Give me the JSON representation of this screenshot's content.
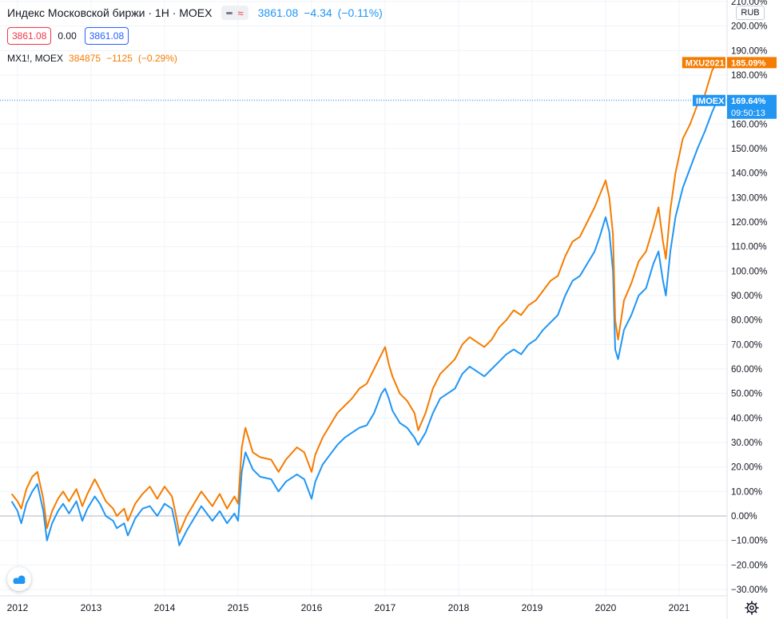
{
  "header": {
    "title": "Индекс Московской биржи · 1Н · MOEX",
    "last": "3861.08",
    "change": "−4.34",
    "change_pct": "(−0.11%)",
    "bid": "3861.08",
    "spread": "0.00",
    "ask": "3861.08"
  },
  "compare": {
    "symbol": "MX1!, MOEX",
    "last": "384875",
    "change": "−1125",
    "change_pct": "(−0.29%)"
  },
  "currency_button": "RUB",
  "colors": {
    "imoex": "#2196f3",
    "mxu": "#f57c00",
    "axis_text": "#131722",
    "zero_line": "#b2b5be"
  },
  "chart_data": {
    "type": "line",
    "title": "Индекс Московской биржи · 1Н · MOEX",
    "x_ticks": [
      "2012",
      "2013",
      "2014",
      "2015",
      "2016",
      "2017",
      "2018",
      "2019",
      "2020",
      "2021"
    ],
    "x_range": [
      2011.92,
      2021.75
    ],
    "y_range": [
      -30,
      210
    ],
    "y_unit": "%",
    "y_ticks": [
      "210.00%",
      "200.00%",
      "190.00%",
      "180.00%",
      "170.00%",
      "160.00%",
      "150.00%",
      "140.00%",
      "130.00%",
      "120.00%",
      "110.00%",
      "100.00%",
      "90.00%",
      "80.00%",
      "70.00%",
      "60.00%",
      "50.00%",
      "40.00%",
      "30.00%",
      "20.00%",
      "10.00%",
      "0.00%",
      "−10.00%",
      "−20.00%",
      "−30.00%"
    ],
    "series": [
      {
        "name": "IMOEX",
        "color": "#2196f3",
        "points": [
          [
            2011.92,
            6
          ],
          [
            2012.0,
            2
          ],
          [
            2012.05,
            -3
          ],
          [
            2012.12,
            5
          ],
          [
            2012.2,
            10
          ],
          [
            2012.27,
            13
          ],
          [
            2012.35,
            2
          ],
          [
            2012.4,
            -10
          ],
          [
            2012.47,
            -3
          ],
          [
            2012.55,
            2
          ],
          [
            2012.62,
            5
          ],
          [
            2012.7,
            1
          ],
          [
            2012.8,
            6
          ],
          [
            2012.88,
            -2
          ],
          [
            2012.95,
            3
          ],
          [
            2013.05,
            8
          ],
          [
            2013.12,
            5
          ],
          [
            2013.2,
            0
          ],
          [
            2013.3,
            -2
          ],
          [
            2013.35,
            -5
          ],
          [
            2013.45,
            -3
          ],
          [
            2013.5,
            -8
          ],
          [
            2013.6,
            -1
          ],
          [
            2013.7,
            3
          ],
          [
            2013.8,
            4
          ],
          [
            2013.9,
            0
          ],
          [
            2014.0,
            5
          ],
          [
            2014.1,
            3
          ],
          [
            2014.15,
            -4
          ],
          [
            2014.2,
            -12
          ],
          [
            2014.3,
            -6
          ],
          [
            2014.4,
            -1
          ],
          [
            2014.5,
            4
          ],
          [
            2014.55,
            2
          ],
          [
            2014.65,
            -2
          ],
          [
            2014.75,
            2
          ],
          [
            2014.85,
            -3
          ],
          [
            2014.95,
            1
          ],
          [
            2015.0,
            -2
          ],
          [
            2015.05,
            18
          ],
          [
            2015.1,
            26
          ],
          [
            2015.2,
            19
          ],
          [
            2015.3,
            16
          ],
          [
            2015.45,
            15
          ],
          [
            2015.55,
            10
          ],
          [
            2015.65,
            14
          ],
          [
            2015.8,
            17
          ],
          [
            2015.9,
            15
          ],
          [
            2016.0,
            7
          ],
          [
            2016.05,
            14
          ],
          [
            2016.15,
            21
          ],
          [
            2016.25,
            25
          ],
          [
            2016.35,
            29
          ],
          [
            2016.45,
            32
          ],
          [
            2016.55,
            34
          ],
          [
            2016.65,
            36
          ],
          [
            2016.75,
            37
          ],
          [
            2016.85,
            42
          ],
          [
            2016.95,
            50
          ],
          [
            2017.0,
            52
          ],
          [
            2017.05,
            48
          ],
          [
            2017.1,
            43
          ],
          [
            2017.2,
            38
          ],
          [
            2017.3,
            36
          ],
          [
            2017.4,
            32
          ],
          [
            2017.45,
            29
          ],
          [
            2017.55,
            34
          ],
          [
            2017.65,
            42
          ],
          [
            2017.75,
            48
          ],
          [
            2017.85,
            50
          ],
          [
            2017.95,
            52
          ],
          [
            2018.05,
            58
          ],
          [
            2018.15,
            61
          ],
          [
            2018.25,
            59
          ],
          [
            2018.35,
            57
          ],
          [
            2018.45,
            60
          ],
          [
            2018.55,
            63
          ],
          [
            2018.65,
            66
          ],
          [
            2018.75,
            68
          ],
          [
            2018.85,
            66
          ],
          [
            2018.95,
            70
          ],
          [
            2019.05,
            72
          ],
          [
            2019.15,
            76
          ],
          [
            2019.25,
            79
          ],
          [
            2019.35,
            82
          ],
          [
            2019.45,
            90
          ],
          [
            2019.55,
            96
          ],
          [
            2019.65,
            98
          ],
          [
            2019.75,
            103
          ],
          [
            2019.85,
            108
          ],
          [
            2019.92,
            114
          ],
          [
            2020.0,
            122
          ],
          [
            2020.05,
            116
          ],
          [
            2020.1,
            100
          ],
          [
            2020.13,
            68
          ],
          [
            2020.17,
            64
          ],
          [
            2020.25,
            76
          ],
          [
            2020.35,
            82
          ],
          [
            2020.45,
            90
          ],
          [
            2020.55,
            93
          ],
          [
            2020.65,
            103
          ],
          [
            2020.72,
            108
          ],
          [
            2020.78,
            96
          ],
          [
            2020.82,
            90
          ],
          [
            2020.88,
            108
          ],
          [
            2020.95,
            122
          ],
          [
            2021.05,
            134
          ],
          [
            2021.15,
            142
          ],
          [
            2021.25,
            150
          ],
          [
            2021.35,
            157
          ],
          [
            2021.45,
            165
          ],
          [
            2021.52,
            169.64
          ]
        ]
      },
      {
        "name": "MXU2021",
        "color": "#f57c00",
        "points": [
          [
            2011.92,
            9
          ],
          [
            2012.0,
            6
          ],
          [
            2012.05,
            3
          ],
          [
            2012.12,
            11
          ],
          [
            2012.2,
            16
          ],
          [
            2012.27,
            18
          ],
          [
            2012.35,
            7
          ],
          [
            2012.4,
            -5
          ],
          [
            2012.47,
            2
          ],
          [
            2012.55,
            7
          ],
          [
            2012.62,
            10
          ],
          [
            2012.7,
            6
          ],
          [
            2012.8,
            11
          ],
          [
            2012.88,
            4
          ],
          [
            2012.95,
            9
          ],
          [
            2013.05,
            15
          ],
          [
            2013.12,
            11
          ],
          [
            2013.2,
            6
          ],
          [
            2013.3,
            3
          ],
          [
            2013.35,
            0
          ],
          [
            2013.45,
            3
          ],
          [
            2013.5,
            -2
          ],
          [
            2013.6,
            5
          ],
          [
            2013.7,
            9
          ],
          [
            2013.8,
            12
          ],
          [
            2013.9,
            7
          ],
          [
            2014.0,
            12
          ],
          [
            2014.1,
            8
          ],
          [
            2014.15,
            1
          ],
          [
            2014.2,
            -7
          ],
          [
            2014.3,
            0
          ],
          [
            2014.4,
            5
          ],
          [
            2014.5,
            10
          ],
          [
            2014.55,
            8
          ],
          [
            2014.65,
            4
          ],
          [
            2014.75,
            9
          ],
          [
            2014.85,
            3
          ],
          [
            2014.95,
            8
          ],
          [
            2015.0,
            5
          ],
          [
            2015.05,
            28
          ],
          [
            2015.1,
            36
          ],
          [
            2015.2,
            26
          ],
          [
            2015.3,
            24
          ],
          [
            2015.45,
            23
          ],
          [
            2015.55,
            18
          ],
          [
            2015.65,
            23
          ],
          [
            2015.8,
            28
          ],
          [
            2015.9,
            26
          ],
          [
            2016.0,
            18
          ],
          [
            2016.05,
            25
          ],
          [
            2016.15,
            32
          ],
          [
            2016.25,
            37
          ],
          [
            2016.35,
            42
          ],
          [
            2016.45,
            45
          ],
          [
            2016.55,
            48
          ],
          [
            2016.65,
            52
          ],
          [
            2016.75,
            54
          ],
          [
            2016.85,
            60
          ],
          [
            2016.95,
            66
          ],
          [
            2017.0,
            69
          ],
          [
            2017.05,
            62
          ],
          [
            2017.1,
            57
          ],
          [
            2017.2,
            50
          ],
          [
            2017.3,
            47
          ],
          [
            2017.4,
            42
          ],
          [
            2017.45,
            35
          ],
          [
            2017.55,
            42
          ],
          [
            2017.65,
            52
          ],
          [
            2017.75,
            58
          ],
          [
            2017.85,
            61
          ],
          [
            2017.95,
            64
          ],
          [
            2018.05,
            70
          ],
          [
            2018.15,
            73
          ],
          [
            2018.25,
            71
          ],
          [
            2018.35,
            69
          ],
          [
            2018.45,
            72
          ],
          [
            2018.55,
            77
          ],
          [
            2018.65,
            80
          ],
          [
            2018.75,
            84
          ],
          [
            2018.85,
            82
          ],
          [
            2018.95,
            86
          ],
          [
            2019.05,
            88
          ],
          [
            2019.15,
            92
          ],
          [
            2019.25,
            96
          ],
          [
            2019.35,
            98
          ],
          [
            2019.45,
            106
          ],
          [
            2019.55,
            112
          ],
          [
            2019.65,
            114
          ],
          [
            2019.75,
            120
          ],
          [
            2019.85,
            126
          ],
          [
            2019.92,
            131
          ],
          [
            2020.0,
            137
          ],
          [
            2020.05,
            130
          ],
          [
            2020.1,
            115
          ],
          [
            2020.13,
            80
          ],
          [
            2020.17,
            72
          ],
          [
            2020.25,
            88
          ],
          [
            2020.35,
            95
          ],
          [
            2020.45,
            104
          ],
          [
            2020.55,
            108
          ],
          [
            2020.65,
            118
          ],
          [
            2020.72,
            126
          ],
          [
            2020.78,
            112
          ],
          [
            2020.82,
            105
          ],
          [
            2020.88,
            125
          ],
          [
            2020.95,
            140
          ],
          [
            2021.05,
            154
          ],
          [
            2021.15,
            160
          ],
          [
            2021.25,
            168
          ],
          [
            2021.35,
            172
          ],
          [
            2021.45,
            182
          ],
          [
            2021.52,
            185.09
          ]
        ]
      }
    ],
    "labels": [
      {
        "series": "MXU2021",
        "name": "MXU2021",
        "value": "185.09%"
      },
      {
        "series": "IMOEX",
        "name": "IMOEX",
        "value": "169.64%",
        "time": "09:50:13"
      }
    ]
  }
}
